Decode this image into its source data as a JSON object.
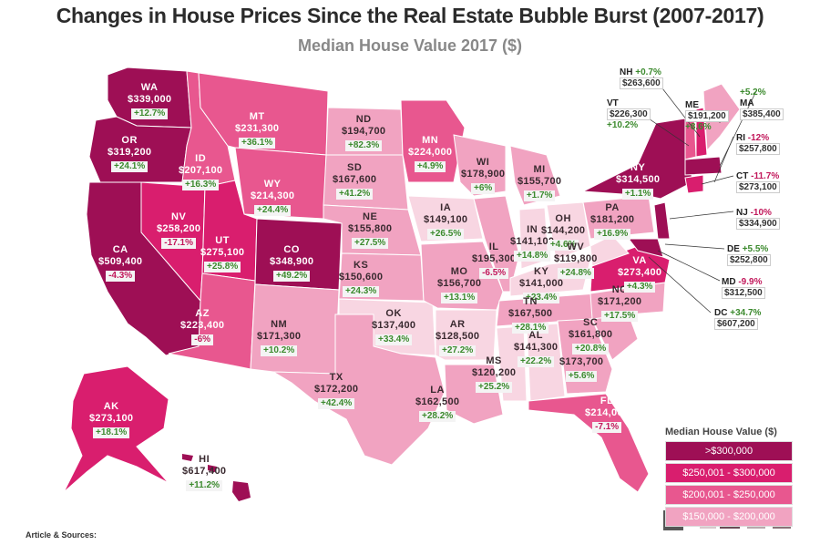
{
  "title": "Changes in House Prices Since the Real Estate Bubble Burst (2007-2017)",
  "subtitle": "Median House Value 2017 ($)",
  "colors": {
    "tier1": "#9e0f55",
    "tier2": "#d91e6e",
    "tier3": "#e8578f",
    "tier4": "#f1a3c1",
    "tier5": "#f8d6e2"
  },
  "legend": {
    "title": "Median House Value ($)",
    "items": [
      {
        "label": ">$300,000",
        "color": "#9e0f55"
      },
      {
        "label": "$250,001 - $300,000",
        "color": "#d91e6e"
      },
      {
        "label": "$200,001 - $250,000",
        "color": "#e8578f"
      },
      {
        "label": "$150,000 - $200,000",
        "color": "#f1a3c1"
      }
    ]
  },
  "states": {
    "wa": {
      "abbr": "WA",
      "value": "$339,000",
      "change": "+12.7%"
    },
    "or": {
      "abbr": "OR",
      "value": "$319,200",
      "change": "+24.1%"
    },
    "ca": {
      "abbr": "CA",
      "value": "$509,400",
      "change": "-4.3%"
    },
    "nv": {
      "abbr": "NV",
      "value": "$258,200",
      "change": "-17.1%"
    },
    "id": {
      "abbr": "ID",
      "value": "$207,100",
      "change": "+16.3%"
    },
    "mt": {
      "abbr": "MT",
      "value": "$231,300",
      "change": "+36.1%"
    },
    "wy": {
      "abbr": "WY",
      "value": "$214,300",
      "change": "+24.4%"
    },
    "ut": {
      "abbr": "UT",
      "value": "$275,100",
      "change": "+25.8%"
    },
    "co": {
      "abbr": "CO",
      "value": "$348,900",
      "change": "+49.2%"
    },
    "az": {
      "abbr": "AZ",
      "value": "$223,400",
      "change": "-6%"
    },
    "nm": {
      "abbr": "NM",
      "value": "$171,300",
      "change": "+10.2%"
    },
    "nd": {
      "abbr": "ND",
      "value": "$194,700",
      "change": "+82.3%"
    },
    "sd": {
      "abbr": "SD",
      "value": "$167,600",
      "change": "+41.2%"
    },
    "ne": {
      "abbr": "NE",
      "value": "$155,800",
      "change": "+27.5%"
    },
    "ks": {
      "abbr": "KS",
      "value": "$150,600",
      "change": "+24.3%"
    },
    "ok": {
      "abbr": "OK",
      "value": "$137,400",
      "change": "+33.4%"
    },
    "tx": {
      "abbr": "TX",
      "value": "$172,200",
      "change": "+42.4%"
    },
    "mn": {
      "abbr": "MN",
      "value": "$224,000",
      "change": "+4.9%"
    },
    "ia": {
      "abbr": "IA",
      "value": "$149,100",
      "change": "+26.5%"
    },
    "mo": {
      "abbr": "MO",
      "value": "$156,700",
      "change": "+13.1%"
    },
    "ar": {
      "abbr": "AR",
      "value": "$128,500",
      "change": "+27.2%"
    },
    "la": {
      "abbr": "LA",
      "value": "$162,500",
      "change": "+28.2%"
    },
    "wi": {
      "abbr": "WI",
      "value": "$178,900",
      "change": "+6%"
    },
    "il": {
      "abbr": "IL",
      "value": "$195,300",
      "change": "-6.5%"
    },
    "mi": {
      "abbr": "MI",
      "value": "$155,700",
      "change": "+1.7%"
    },
    "in": {
      "abbr": "IN",
      "value": "$141,100",
      "change": "+14.8%"
    },
    "oh": {
      "abbr": "OH",
      "value": "$144,200",
      "change": "+4.6%"
    },
    "ky": {
      "abbr": "KY",
      "value": "$141,000",
      "change": "+23.4%"
    },
    "tn": {
      "abbr": "TN",
      "value": "$167,500",
      "change": "+28.1%"
    },
    "ms": {
      "abbr": "MS",
      "value": "$120,200",
      "change": "+25.2%"
    },
    "al": {
      "abbr": "AL",
      "value": "$141,300",
      "change": "+22.2%"
    },
    "ga": {
      "abbr": "GA",
      "value": "$173,700",
      "change": "+5.6%"
    },
    "fl": {
      "abbr": "FL",
      "value": "$214,000",
      "change": "-7.1%"
    },
    "sc": {
      "abbr": "SC",
      "value": "$161,800",
      "change": "+20.8%"
    },
    "nc": {
      "abbr": "NC",
      "value": "$171,200",
      "change": "+17.5%"
    },
    "va": {
      "abbr": "VA",
      "value": "$273,400",
      "change": "+4.3%"
    },
    "wv": {
      "abbr": "WV",
      "value": "$119,800",
      "change": "+24.8%"
    },
    "pa": {
      "abbr": "PA",
      "value": "$181,200",
      "change": "+16.9%"
    },
    "ny": {
      "abbr": "NY",
      "value": "$314,500",
      "change": "+1.1%"
    },
    "ak": {
      "abbr": "AK",
      "value": "$273,100",
      "change": "+18.1%"
    },
    "hi": {
      "abbr": "HI",
      "value": "$617,400",
      "change": "+11.2%"
    }
  },
  "northeast": {
    "nh": {
      "abbr": "NH",
      "value": "$263,600",
      "change": "+0.7%"
    },
    "vt": {
      "abbr": "VT",
      "value": "$226,300",
      "change": "+10.2%"
    },
    "me": {
      "abbr": "ME",
      "value": "$191,200",
      "change": "+8.6%"
    },
    "ma": {
      "abbr": "MA",
      "value": "$385,400",
      "change": "+5.2%"
    },
    "ri": {
      "abbr": "RI",
      "value": "$257,800",
      "change": "-12%"
    },
    "ct": {
      "abbr": "CT",
      "value": "$273,100",
      "change": "-11.7%"
    },
    "nj": {
      "abbr": "NJ",
      "value": "$334,900",
      "change": "-10%"
    },
    "de": {
      "abbr": "DE",
      "value": "$252,800",
      "change": "+5.5%"
    },
    "md": {
      "abbr": "MD",
      "value": "$312,500",
      "change": "-9.9%"
    },
    "dc": {
      "abbr": "DC",
      "value": "$607,200",
      "change": "+34.7%"
    }
  },
  "sources_label": "Article & Sources:"
}
